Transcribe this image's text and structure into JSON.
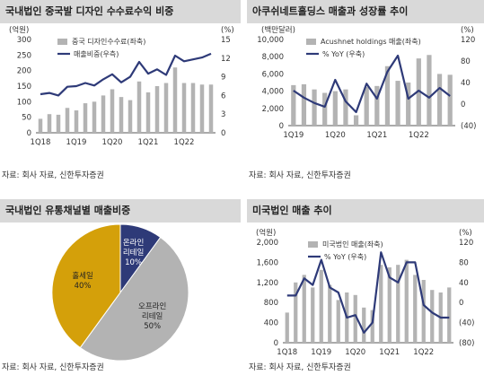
{
  "colors": {
    "bar": "#b3b3b3",
    "line": "#2e3a78",
    "pie_small": "#2e3a78",
    "pie_mid": "#b3b3b3",
    "pie_large": "#d4a00a",
    "title_bg": "#d9d9d9"
  },
  "panels": [
    {
      "title": "국내법인 중국발 디자인 수수료수익 비중",
      "source": "자료: 회사 자료, 신한투자증권"
    },
    {
      "title": "아쿠쉬네트홀딩스 매출과 성장률 추이",
      "source": "자료: 회사 자료, 신한투자증권"
    },
    {
      "title": "국내법인 유통채널별 매출비중",
      "source": "자료: 회사 자료, 신한투자증권"
    },
    {
      "title": "미국법인 매출 추이",
      "source": "자료: 회사 자료, 신한투자증권"
    }
  ],
  "chart_data": [
    {
      "type": "bar",
      "left_unit": "(억원)",
      "right_unit": "(%)",
      "ylim": [
        0,
        300
      ],
      "y2lim": [
        0,
        15
      ],
      "yticks": [
        "0",
        "50",
        "100",
        "150",
        "200",
        "250",
        "300"
      ],
      "y2ticks": [
        "0",
        "3",
        "6",
        "9",
        "12",
        "15"
      ],
      "xtick_labels": [
        {
          "label": "1Q18",
          "i": 0
        },
        {
          "label": "1Q19",
          "i": 4
        },
        {
          "label": "1Q20",
          "i": 8
        },
        {
          "label": "1Q21",
          "i": 12
        },
        {
          "label": "1Q22",
          "i": 16
        }
      ],
      "series": [
        {
          "name": "중국 디자인수수료(좌축)",
          "kind": "bar",
          "values": [
            45,
            60,
            58,
            80,
            72,
            95,
            100,
            120,
            140,
            115,
            105,
            165,
            130,
            150,
            160,
            210,
            160,
            160,
            155,
            155
          ]
        },
        {
          "name": "매출비중(우측)",
          "kind": "line",
          "axis": "right",
          "values": [
            6.2,
            6.4,
            6.0,
            7.4,
            7.5,
            8.0,
            7.6,
            8.6,
            9.4,
            8.1,
            9.0,
            11.4,
            9.5,
            10.2,
            9.3,
            12.4,
            11.5,
            11.8,
            12.1,
            12.7
          ]
        }
      ]
    },
    {
      "type": "bar",
      "left_unit": "(백만달러)",
      "right_unit": "(%)",
      "ylim": [
        0,
        10000
      ],
      "y2lim": [
        -40,
        120
      ],
      "yticks": [
        "0",
        "2,000",
        "4,000",
        "6,000",
        "8,000",
        "10,000"
      ],
      "y2ticks": [
        "(40)",
        "0",
        "40",
        "80",
        "120"
      ],
      "xtick_labels": [
        {
          "label": "1Q19",
          "i": 0
        },
        {
          "label": "1Q20",
          "i": 4
        },
        {
          "label": "1Q21",
          "i": 8
        },
        {
          "label": "1Q22",
          "i": 12
        }
      ],
      "series": [
        {
          "name": "Acushnet holdings 매출(좌축)",
          "kind": "bar",
          "values": [
            4700,
            4800,
            4200,
            3800,
            4000,
            4200,
            1200,
            4500,
            4600,
            6900,
            5200,
            5000,
            7800,
            8200,
            6000,
            5900
          ]
        },
        {
          "name": "% YoY (우축)",
          "kind": "line",
          "axis": "right",
          "values": [
            25,
            12,
            2,
            -5,
            45,
            5,
            -15,
            38,
            10,
            60,
            90,
            10,
            25,
            12,
            30,
            15
          ]
        }
      ]
    },
    {
      "type": "pie",
      "slices": [
        {
          "label": "온라인",
          "label2": "리테일",
          "value": 10,
          "pct": "10%"
        },
        {
          "label": "오프라인",
          "label2": "리테일",
          "value": 50,
          "pct": "50%"
        },
        {
          "label": "홀세일",
          "label2": "",
          "value": 40,
          "pct": "40%"
        }
      ]
    },
    {
      "type": "bar",
      "left_unit": "(억원)",
      "right_unit": "(%)",
      "ylim": [
        0,
        2000
      ],
      "y2lim": [
        -80,
        120
      ],
      "yticks": [
        "0",
        "400",
        "800",
        "1,200",
        "1,600",
        "2,000"
      ],
      "y2ticks": [
        "(80)",
        "(40)",
        "0",
        "40",
        "80",
        "120"
      ],
      "xtick_labels": [
        {
          "label": "1Q18",
          "i": 0
        },
        {
          "label": "1Q19",
          "i": 4
        },
        {
          "label": "1Q20",
          "i": 8
        },
        {
          "label": "1Q21",
          "i": 12
        },
        {
          "label": "1Q22",
          "i": 16
        }
      ],
      "series": [
        {
          "name": "미국법인 매출(좌축)",
          "kind": "bar",
          "values": [
            600,
            1200,
            1350,
            1100,
            1450,
            1150,
            850,
            1000,
            950,
            700,
            650,
            1550,
            1500,
            1550,
            1650,
            1350,
            1250,
            1050,
            1000,
            1100
          ]
        },
        {
          "name": "% YoY (우축)",
          "kind": "line",
          "axis": "right",
          "values": [
            14,
            14,
            48,
            35,
            85,
            30,
            20,
            -30,
            -25,
            -60,
            -40,
            100,
            50,
            40,
            80,
            80,
            -5,
            -20,
            -30,
            -30
          ]
        }
      ]
    }
  ]
}
